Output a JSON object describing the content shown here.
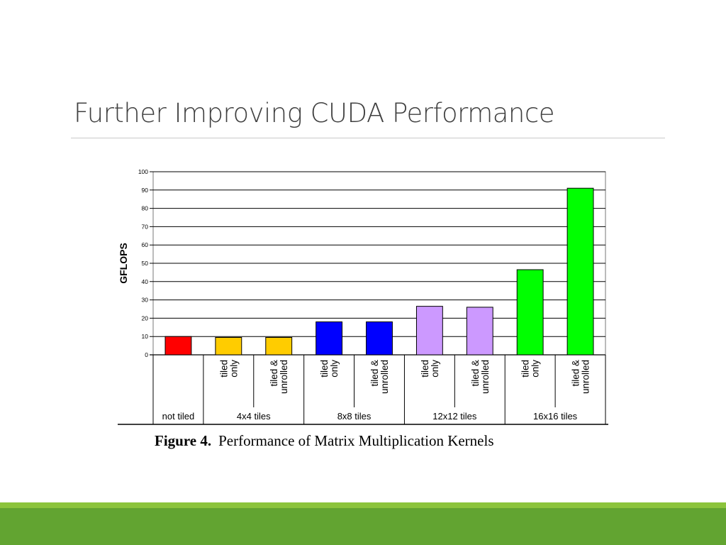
{
  "slide": {
    "title": "Further Improving CUDA Performance"
  },
  "colors": {
    "theme_band": "#62a431",
    "theme_band_light": "#8cc43c"
  },
  "chart_data": {
    "type": "bar",
    "ylabel": "GFLOPS",
    "ylim": [
      0,
      100
    ],
    "yticks": [
      0,
      10,
      20,
      30,
      40,
      50,
      60,
      70,
      80,
      90,
      100
    ],
    "grid": true,
    "caption_bold": "Figure 4.",
    "caption_text": "Performance of Matrix Multiplication Kernels",
    "groups": [
      {
        "label": "not tiled",
        "bars": [
          {
            "sublabel": [],
            "value": 10,
            "color": "#ff0000"
          }
        ]
      },
      {
        "label": "4x4 tiles",
        "bars": [
          {
            "sublabel": [
              "tiled",
              "only"
            ],
            "value": 9.5,
            "color": "#ffcc00"
          },
          {
            "sublabel": [
              "tiled &",
              "unrolled"
            ],
            "value": 9.5,
            "color": "#ffcc00"
          }
        ]
      },
      {
        "label": "8x8 tiles",
        "bars": [
          {
            "sublabel": [
              "tiled",
              "only"
            ],
            "value": 18,
            "color": "#0000ff"
          },
          {
            "sublabel": [
              "tiled &",
              "unrolled"
            ],
            "value": 18,
            "color": "#0000ff"
          }
        ]
      },
      {
        "label": "12x12 tiles",
        "bars": [
          {
            "sublabel": [
              "tiled",
              "only"
            ],
            "value": 26.5,
            "color": "#cc99ff"
          },
          {
            "sublabel": [
              "tiled &",
              "unrolled"
            ],
            "value": 26,
            "color": "#cc99ff"
          }
        ]
      },
      {
        "label": "16x16 tiles",
        "bars": [
          {
            "sublabel": [
              "tiled",
              "only"
            ],
            "value": 46.5,
            "color": "#00ff00"
          },
          {
            "sublabel": [
              "tiled &",
              "unrolled"
            ],
            "value": 91,
            "color": "#00ff00"
          }
        ]
      }
    ]
  }
}
